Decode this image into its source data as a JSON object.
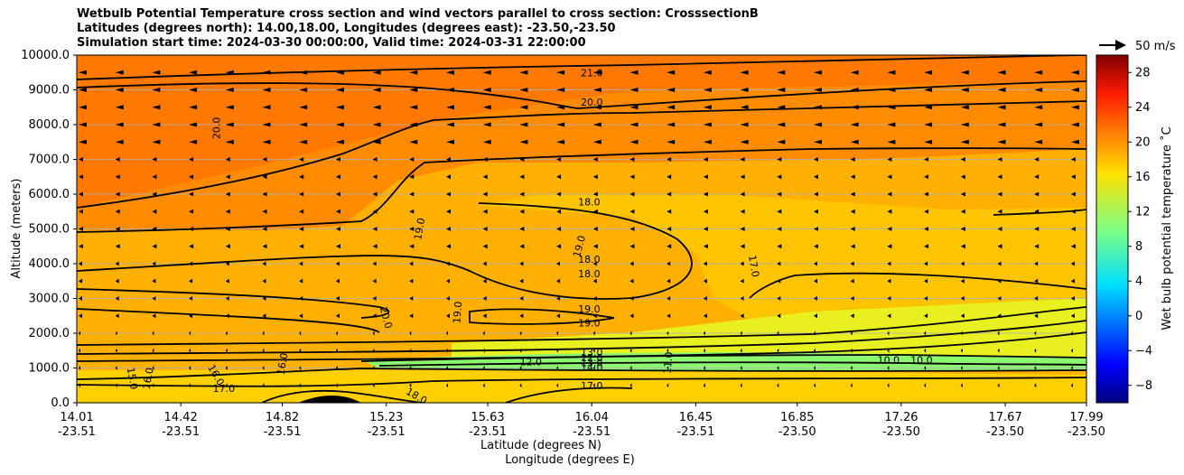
{
  "chart_data": {
    "type": "filled-contour",
    "title": [
      "Wetbulb Potential Temperature cross section and wind vectors parallel to cross section: CrosssectionB",
      "Latitudes (degrees north): 14.00,18.00, Longitudes (degrees east): -23.50,-23.50",
      "Simulation start time: 2024-03-30 00:00:00, Valid time: 2024-03-31 22:00:00"
    ],
    "xlabel_lat": "Latitude (degrees N)",
    "xlabel_lon": "Longitude (degrees E)",
    "ylabel": "Altitude (meters)",
    "ylim": [
      0,
      10000
    ],
    "xlim": [
      14.01,
      17.99
    ],
    "x_ticks": [
      {
        "lat": "14.01",
        "lon": "-23.51",
        "v": 14.01
      },
      {
        "lat": "14.42",
        "lon": "-23.51",
        "v": 14.42
      },
      {
        "lat": "14.82",
        "lon": "-23.51",
        "v": 14.82
      },
      {
        "lat": "15.23",
        "lon": "-23.51",
        "v": 15.23
      },
      {
        "lat": "15.63",
        "lon": "-23.51",
        "v": 15.63
      },
      {
        "lat": "16.04",
        "lon": "-23.51",
        "v": 16.04
      },
      {
        "lat": "16.45",
        "lon": "-23.51",
        "v": 16.45
      },
      {
        "lat": "16.85",
        "lon": "-23.50",
        "v": 16.85
      },
      {
        "lat": "17.26",
        "lon": "-23.50",
        "v": 17.26
      },
      {
        "lat": "17.67",
        "lon": "-23.50",
        "v": 17.67
      },
      {
        "lat": "17.99",
        "lon": "-23.50",
        "v": 17.99
      }
    ],
    "y_ticks": [
      "0.0",
      "1000.0",
      "2000.0",
      "3000.0",
      "4000.0",
      "5000.0",
      "6000.0",
      "7000.0",
      "8000.0",
      "9000.0",
      "10000.0"
    ],
    "y_tick_values": [
      0,
      1000,
      2000,
      3000,
      4000,
      5000,
      6000,
      7000,
      8000,
      9000,
      10000
    ],
    "colorbar": {
      "label": "Wet bulb potential temperature $^\\circ$C",
      "label_display": "Wet bulb potential temperature ˚C",
      "range": [
        -10,
        30
      ],
      "ticks": [
        "−8",
        "−4",
        "0",
        "4",
        "8",
        "12",
        "16",
        "20",
        "24",
        "28"
      ],
      "tick_values": [
        -8,
        -4,
        0,
        4,
        8,
        12,
        16,
        20,
        24,
        28
      ],
      "colormap": "jet"
    },
    "wind_reference": {
      "label": "50 m/s",
      "speed": 50
    },
    "contour_labels": [
      {
        "text": "21.0",
        "x": 16.04,
        "y": 9500
      },
      {
        "text": "20.0",
        "x": 16.04,
        "y": 8650
      },
      {
        "text": "20.0",
        "x": 14.56,
        "y": 7900,
        "rotate": -90
      },
      {
        "text": "18.0",
        "x": 16.03,
        "y": 5780
      },
      {
        "text": "19.0",
        "x": 15.36,
        "y": 5000,
        "rotate": -80
      },
      {
        "text": "19.0",
        "x": 15.99,
        "y": 4500,
        "rotate": -75
      },
      {
        "text": "18.0",
        "x": 16.03,
        "y": 4130
      },
      {
        "text": "18.0",
        "x": 16.03,
        "y": 3720
      },
      {
        "text": "17.0",
        "x": 16.68,
        "y": 3930,
        "rotate": 80
      },
      {
        "text": "19.0",
        "x": 16.03,
        "y": 2700
      },
      {
        "text": "19.0",
        "x": 16.03,
        "y": 2300
      },
      {
        "text": "20.0",
        "x": 15.23,
        "y": 2450,
        "rotate": 75
      },
      {
        "text": "19.0",
        "x": 15.51,
        "y": 2600,
        "rotate": -85
      },
      {
        "text": "12.0",
        "x": 15.8,
        "y": 1180
      },
      {
        "text": "13.0",
        "x": 16.04,
        "y": 1460
      },
      {
        "text": "12.0",
        "x": 16.04,
        "y": 1300
      },
      {
        "text": "13.0",
        "x": 16.04,
        "y": 1150
      },
      {
        "text": "14.0",
        "x": 16.04,
        "y": 1030
      },
      {
        "text": "17.0",
        "x": 16.04,
        "y": 500
      },
      {
        "text": "11.0",
        "x": 16.34,
        "y": 1150,
        "rotate": -85
      },
      {
        "text": "10.0",
        "x": 17.21,
        "y": 1230
      },
      {
        "text": "10.0",
        "x": 17.34,
        "y": 1230
      },
      {
        "text": "16.0",
        "x": 14.29,
        "y": 700,
        "rotate": -80
      },
      {
        "text": "16.0",
        "x": 14.82,
        "y": 1120,
        "rotate": -80
      },
      {
        "text": "16.0",
        "x": 14.56,
        "y": 800,
        "rotate": 60
      },
      {
        "text": "15.0",
        "x": 14.23,
        "y": 700,
        "rotate": 80
      },
      {
        "text": "17.0",
        "x": 14.59,
        "y": 420
      },
      {
        "text": "18.0",
        "x": 15.35,
        "y": 200,
        "rotate": 30
      }
    ],
    "colors": {
      "warm_top": "#ff7400",
      "mid": "#ffa000",
      "low": "#ffc000",
      "boundary": "#f0f020",
      "cool_layer": "#8cf870",
      "terrain": "#000000"
    }
  }
}
